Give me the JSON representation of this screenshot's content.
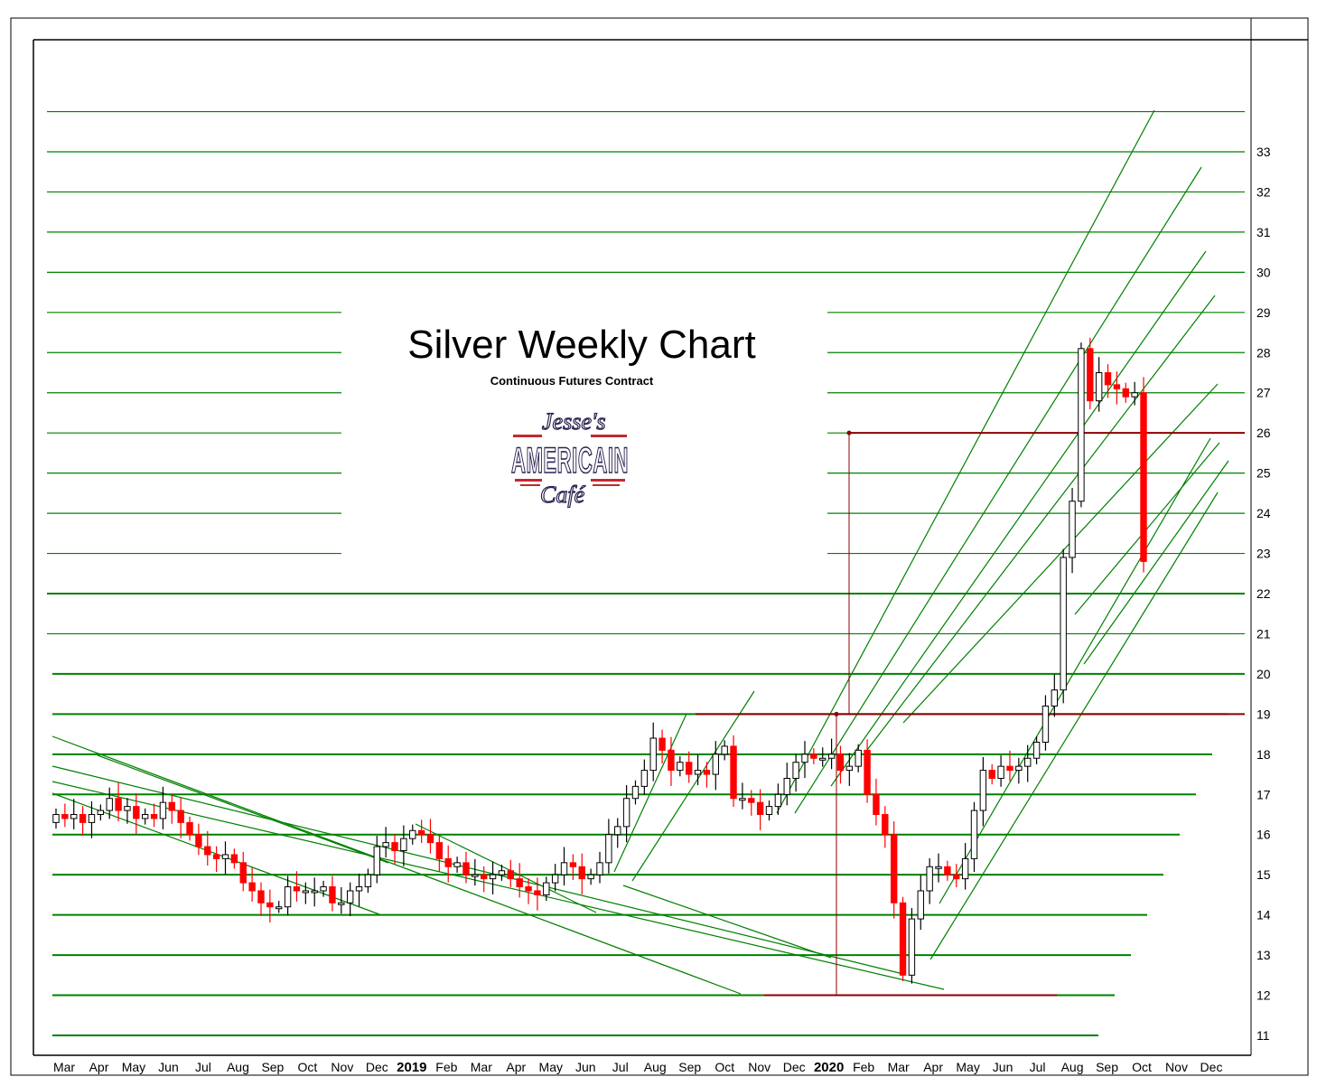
{
  "chart_data": {
    "type": "candlestick",
    "title": "Silver Weekly Chart",
    "subtitle": "Continuous Futures Contract",
    "ylim": [
      10.5,
      35
    ],
    "y_ticks": [
      11,
      12,
      13,
      14,
      15,
      16,
      17,
      18,
      19,
      20,
      21,
      22,
      23,
      24,
      25,
      26,
      27,
      28,
      29,
      30,
      31,
      32,
      33
    ],
    "x_months": [
      {
        "label": "Mar",
        "year": 2018
      },
      {
        "label": "Apr",
        "year": 2018
      },
      {
        "label": "May",
        "year": 2018
      },
      {
        "label": "Jun",
        "year": 2018
      },
      {
        "label": "Jul",
        "year": 2018
      },
      {
        "label": "Aug",
        "year": 2018
      },
      {
        "label": "Sep",
        "year": 2018
      },
      {
        "label": "Oct",
        "year": 2018
      },
      {
        "label": "Nov",
        "year": 2018
      },
      {
        "label": "Dec",
        "year": 2018
      },
      {
        "label": "2019",
        "year": 2019,
        "bold": true
      },
      {
        "label": "Feb",
        "year": 2019
      },
      {
        "label": "Mar",
        "year": 2019
      },
      {
        "label": "Apr",
        "year": 2019
      },
      {
        "label": "May",
        "year": 2019
      },
      {
        "label": "Jun",
        "year": 2019
      },
      {
        "label": "Jul",
        "year": 2019
      },
      {
        "label": "Aug",
        "year": 2019
      },
      {
        "label": "Sep",
        "year": 2019
      },
      {
        "label": "Oct",
        "year": 2019
      },
      {
        "label": "Nov",
        "year": 2019
      },
      {
        "label": "Dec",
        "year": 2019
      },
      {
        "label": "2020",
        "year": 2020,
        "bold": true
      },
      {
        "label": "Feb",
        "year": 2020
      },
      {
        "label": "Mar",
        "year": 2020
      },
      {
        "label": "Apr",
        "year": 2020
      },
      {
        "label": "May",
        "year": 2020
      },
      {
        "label": "Jun",
        "year": 2020
      },
      {
        "label": "Jul",
        "year": 2020
      },
      {
        "label": "Aug",
        "year": 2020
      },
      {
        "label": "Sep",
        "year": 2020
      },
      {
        "label": "Oct",
        "year": 2020
      },
      {
        "label": "Nov",
        "year": 2020
      },
      {
        "label": "Dec",
        "year": 2020
      }
    ],
    "weekly_closes": [
      16.5,
      16.4,
      16.5,
      16.3,
      16.5,
      16.6,
      16.9,
      16.6,
      16.7,
      16.4,
      16.5,
      16.4,
      16.8,
      16.6,
      16.3,
      16.0,
      15.7,
      15.5,
      15.4,
      15.5,
      15.3,
      14.8,
      14.6,
      14.3,
      14.2,
      14.2,
      14.7,
      14.6,
      14.6,
      14.6,
      14.7,
      14.3,
      14.3,
      14.6,
      14.7,
      15.0,
      15.7,
      15.8,
      15.6,
      15.9,
      16.1,
      16.0,
      15.8,
      15.4,
      15.2,
      15.3,
      15.0,
      15.0,
      14.9,
      15.0,
      15.1,
      14.9,
      14.7,
      14.6,
      14.5,
      14.8,
      15.0,
      15.3,
      15.2,
      14.9,
      15.0,
      15.3,
      16.0,
      16.2,
      16.9,
      17.2,
      17.6,
      18.4,
      18.1,
      17.6,
      17.8,
      17.5,
      17.6,
      17.5,
      18.0,
      18.2,
      16.9,
      16.9,
      16.8,
      16.5,
      16.7,
      17.0,
      17.4,
      17.8,
      18.0,
      17.9,
      17.9,
      18.0,
      17.6,
      17.7,
      18.1,
      17.0,
      16.5,
      16.0,
      14.3,
      12.5,
      13.9,
      14.6,
      15.2,
      15.2,
      15.0,
      14.9,
      15.4,
      16.6,
      17.6,
      17.4,
      17.7,
      17.6,
      17.7,
      17.9,
      18.3,
      19.2,
      19.6,
      22.9,
      24.3,
      28.1,
      26.8,
      27.5,
      27.2,
      27.1,
      26.9,
      27.0,
      22.8
    ],
    "price_levels_marked": [
      12,
      19,
      26
    ],
    "measured_move": {
      "from": 12,
      "to": 19,
      "target": 26
    }
  }
}
